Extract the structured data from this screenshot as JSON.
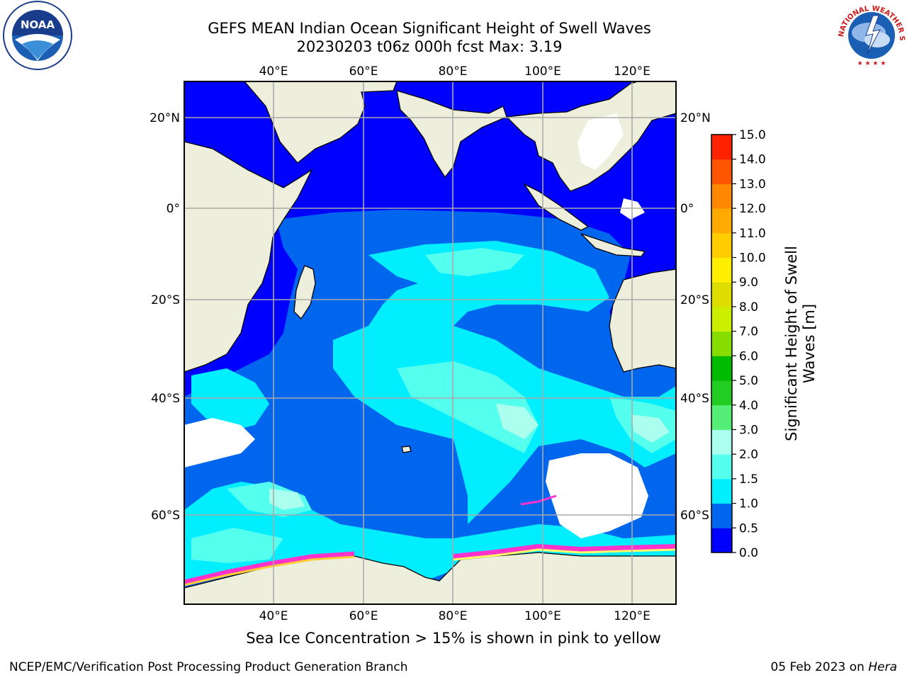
{
  "title": {
    "line1": "GEFS MEAN Indian Ocean Significant Height of Swell Waves",
    "line2": "20230203 t06z 000h fcst   Max: 3.19"
  },
  "map": {
    "lon_labels": [
      "40°E",
      "60°E",
      "80°E",
      "100°E",
      "120°E"
    ],
    "lat_labels_left": [
      "20°N",
      "0°",
      "20°S",
      "40°S",
      "60°S"
    ],
    "lat_labels_right": [
      "20°N",
      "0°",
      "20°S",
      "40°S",
      "60°S"
    ],
    "land_color": "#eeeedd",
    "ice_colors": [
      "#ff33cc",
      "#ffcc33",
      "#ffff66"
    ]
  },
  "colorbar": {
    "title": "Significant Height of Swell Waves [m]",
    "ticks": [
      "0.0",
      "0.5",
      "1.0",
      "1.5",
      "2.0",
      "3.0",
      "4.0",
      "5.0",
      "6.0",
      "7.0",
      "8.0",
      "9.0",
      "10.0",
      "11.0",
      "12.0",
      "13.0",
      "14.0",
      "15.0"
    ],
    "colors": [
      "#0000ff",
      "#0066ee",
      "#00eeff",
      "#55ffee",
      "#aaffee",
      "#55ee77",
      "#22cc22",
      "#00bb00",
      "#88dd00",
      "#ccee00",
      "#dddd00",
      "#ffee00",
      "#ffcc00",
      "#ffaa00",
      "#ff8800",
      "#ff5500",
      "#ff2200"
    ]
  },
  "caption": "Sea Ice Concentration > 15% is shown in pink to yellow",
  "footer": {
    "left": "NCEP/EMC/Verification Post Processing Product Generation Branch",
    "right_date": "05 Feb 2023 on ",
    "right_machine": "Hera"
  },
  "logos": {
    "noaa_text": "NOAA",
    "nws_text": "NATIONAL WEATHER SERVICE"
  }
}
